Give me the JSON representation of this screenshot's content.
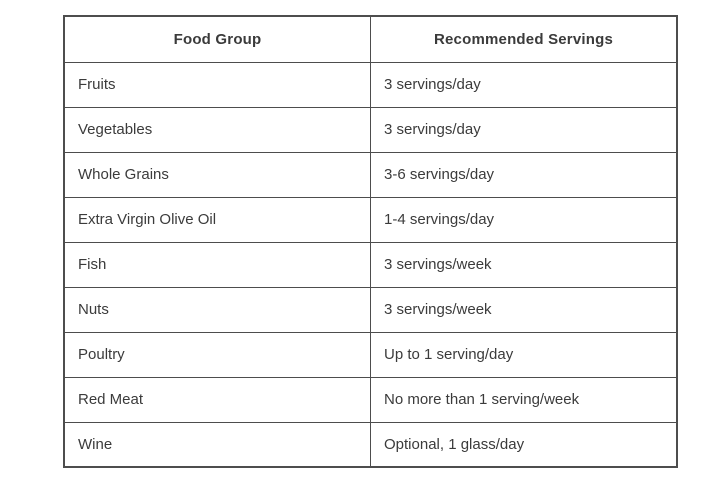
{
  "table": {
    "headers": [
      "Food Group",
      "Recommended Servings"
    ],
    "rows": [
      [
        "Fruits",
        "3 servings/day"
      ],
      [
        "Vegetables",
        "3 servings/day"
      ],
      [
        "Whole Grains",
        "3-6 servings/day"
      ],
      [
        "Extra Virgin Olive Oil",
        "1-4 servings/day"
      ],
      [
        "Fish",
        "3 servings/week"
      ],
      [
        "Nuts",
        "3 servings/week"
      ],
      [
        "Poultry",
        "Up to 1 serving/day"
      ],
      [
        "Red Meat",
        "No more than 1 serving/week"
      ],
      [
        "Wine",
        "Optional, 1 glass/day"
      ]
    ]
  },
  "chart_data": {
    "type": "table",
    "columns": [
      "Food Group",
      "Recommended Servings"
    ],
    "rows": [
      {
        "food_group": "Fruits",
        "recommended_servings": "3 servings/day"
      },
      {
        "food_group": "Vegetables",
        "recommended_servings": "3 servings/day"
      },
      {
        "food_group": "Whole Grains",
        "recommended_servings": "3-6 servings/day"
      },
      {
        "food_group": "Extra Virgin Olive Oil",
        "recommended_servings": "1-4 servings/day"
      },
      {
        "food_group": "Fish",
        "recommended_servings": "3 servings/week"
      },
      {
        "food_group": "Nuts",
        "recommended_servings": "3 servings/week"
      },
      {
        "food_group": "Poultry",
        "recommended_servings": "Up to 1 serving/day"
      },
      {
        "food_group": "Red Meat",
        "recommended_servings": "No more than 1 serving/week"
      },
      {
        "food_group": "Wine",
        "recommended_servings": "Optional, 1 glass/day"
      }
    ]
  },
  "colors": {
    "border": "#4d4d4d",
    "text": "#3b3b3b",
    "background": "#ffffff"
  }
}
